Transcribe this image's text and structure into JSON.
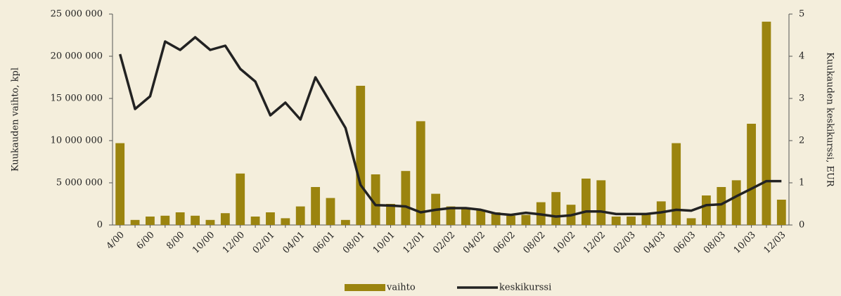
{
  "chart_data": {
    "type": "bar_line",
    "ylabel": "Kuukauden vaihto, kpl",
    "y2label": "Kuukauden keskikurssi, EUR",
    "categories": [
      "4/00",
      null,
      "6/00",
      null,
      "8/00",
      null,
      "10/00",
      null,
      "12/00",
      null,
      "02/01",
      null,
      "04/01",
      null,
      "06/01",
      null,
      "08/01",
      null,
      "10/01",
      null,
      "12/01",
      null,
      "02/02",
      null,
      "04/02",
      null,
      "06/02",
      null,
      "08/02",
      null,
      "10/02",
      null,
      "12/02",
      null,
      "02/03",
      null,
      "04/03",
      null,
      "06/03",
      null,
      "08/03",
      null,
      "10/03",
      null,
      "12/03"
    ],
    "series": [
      {
        "name": "vaihto",
        "type": "bar",
        "color": "#9b840f",
        "values": [
          9700000,
          600000,
          1000000,
          1100000,
          1500000,
          1100000,
          600000,
          1400000,
          6100000,
          1000000,
          1500000,
          800000,
          2200000,
          4500000,
          3200000,
          600000,
          16500000,
          6000000,
          2500000,
          6400000,
          12300000,
          3700000,
          2200000,
          2000000,
          1800000,
          1500000,
          1100000,
          1200000,
          2700000,
          3900000,
          2400000,
          5500000,
          5300000,
          1000000,
          1000000,
          1400000,
          2800000,
          9700000,
          800000,
          3500000,
          4500000,
          5300000,
          12000000,
          24100000,
          3000000
        ]
      },
      {
        "name": "keskikurssi",
        "type": "line",
        "axis": "y2",
        "color": "#222222",
        "values": [
          4.05,
          2.75,
          3.05,
          4.35,
          4.15,
          4.45,
          4.15,
          4.25,
          3.7,
          3.4,
          2.6,
          2.9,
          2.5,
          3.5,
          2.9,
          2.3,
          0.95,
          0.47,
          0.46,
          0.44,
          0.3,
          0.36,
          0.4,
          0.4,
          0.36,
          0.27,
          0.24,
          0.29,
          0.25,
          0.2,
          0.23,
          0.32,
          0.32,
          0.26,
          0.26,
          0.26,
          0.3,
          0.36,
          0.34,
          0.47,
          0.49,
          0.68,
          0.86,
          1.04,
          1.04
        ]
      }
    ],
    "ylim": [
      0,
      25000000
    ],
    "yticks": [
      0,
      {
        "value": 5000000,
        "label": "5 000 000"
      },
      {
        "value": 10000000,
        "label": "10 000 000"
      },
      {
        "value": 15000000,
        "label": "15 000 000"
      },
      {
        "value": 20000000,
        "label": "20 000 000"
      },
      {
        "value": 25000000,
        "label": "25 000 000"
      }
    ],
    "y2lim": [
      0,
      5
    ],
    "y2ticks": [
      0,
      1,
      2,
      3,
      4,
      5
    ],
    "legend": "bottom"
  }
}
